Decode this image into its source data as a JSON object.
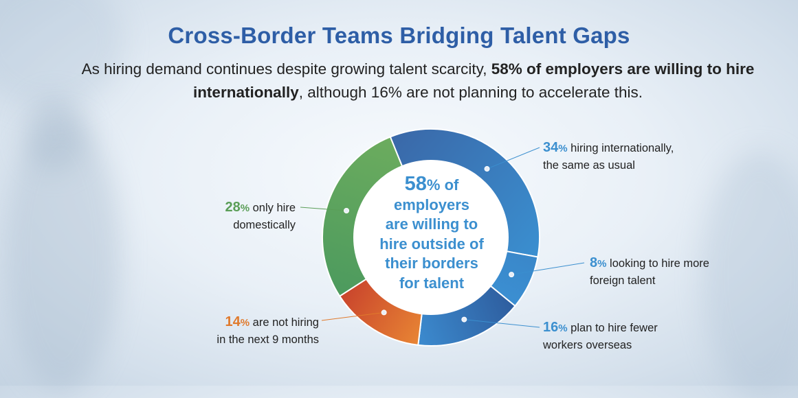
{
  "header": {
    "title": "Cross-Border Teams Bridging Talent Gaps",
    "subtitle_part1": "As hiring demand continues despite growing talent scarcity, ",
    "subtitle_bold": "58% of employers are willing to hire internationally",
    "subtitle_part2": ", although 16% are not planning to accelerate this."
  },
  "center": {
    "value": "58",
    "unit": "%",
    "line1": " of",
    "line2": "employers",
    "line3": "are willing to",
    "line4": "hire outside of",
    "line5": "their borders",
    "line6": "for talent"
  },
  "colors": {
    "blue": "#3b8fcf",
    "green": "#5a9e57",
    "orange": "#e07a2c"
  },
  "chart_data": {
    "type": "pie",
    "style": "donut",
    "title": "",
    "slices": [
      {
        "value": 34,
        "pct_unit": "%",
        "text_line1": " hiring internationally,",
        "text_line2": "the same as usual",
        "color_start": "#3a68a8",
        "color_end": "#3a8fd0"
      },
      {
        "value": 8,
        "pct_unit": "%",
        "text_line1": " looking to hire more",
        "text_line2": "foreign talent",
        "color_start": "#3a87c9",
        "color_end": "#3b8fd2"
      },
      {
        "value": 16,
        "pct_unit": "%",
        "text_line1": " plan to hire fewer",
        "text_line2": "workers overseas",
        "color_start": "#2e5d9e",
        "color_end": "#3c8bcf"
      },
      {
        "value": 14,
        "pct_unit": "%",
        "text_line1": " are not hiring",
        "text_line2": "in the next 9 months",
        "color_start": "#e88534",
        "color_end": "#c9442c"
      },
      {
        "value": 28,
        "pct_unit": "%",
        "text_line1": " only hire",
        "text_line2": "domestically",
        "color_start": "#4c9a5e",
        "color_end": "#6cac5e"
      }
    ]
  }
}
